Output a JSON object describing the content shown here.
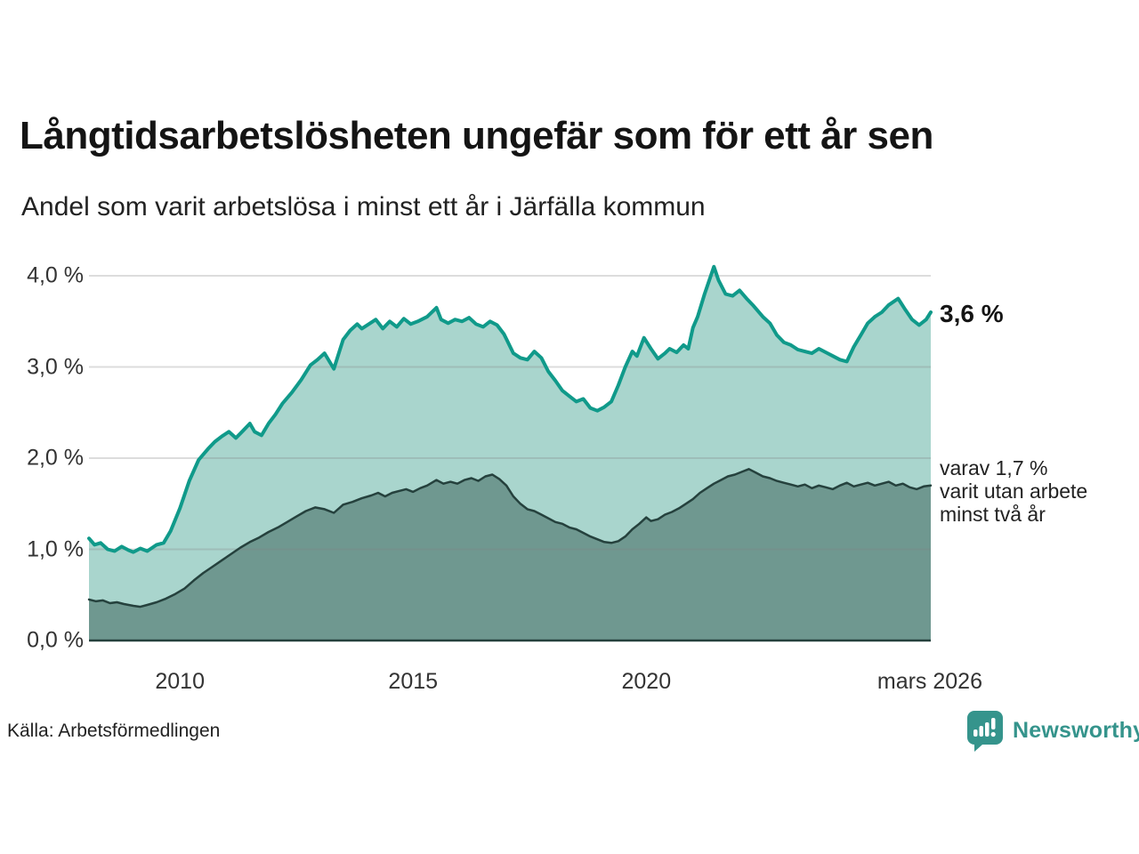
{
  "title": "Långtidsarbetslösheten ungefär som för ett år sen",
  "subtitle": "Andel som varit arbetslösa i minst ett år i Järfälla kommun",
  "source": "Källa: Arbetsförmedlingen",
  "brand": {
    "name": "Newsworthy",
    "color": "#35948c",
    "icon": "newsworthy-bubble-bars-icon"
  },
  "annotations": {
    "latest_total": "3,6 %",
    "latest_sub_lines": [
      "varav 1,7 %",
      "varit utan arbete",
      "minst två år"
    ]
  },
  "colors": {
    "accent_line": "#109a8a",
    "accent_fill": "#a9d5cd",
    "dark_line": "#25413d",
    "dark_fill": "#6f9890",
    "grid": "#d9d9d9",
    "text": "#222222"
  },
  "chart_data": {
    "type": "area",
    "title": "Långtidsarbetslösheten ungefär som för ett år sen",
    "subtitle": "Andel som varit arbetslösa i minst ett år i Järfälla kommun",
    "xlabel": "",
    "ylabel": "",
    "xlim": [
      2008.05,
      2026.1
    ],
    "ylim": [
      0,
      4.2
    ],
    "grid": true,
    "legend_position": "right-annotations",
    "y_ticks": [
      {
        "value": 0,
        "label": "0,0 %"
      },
      {
        "value": 1,
        "label": "1,0 %"
      },
      {
        "value": 2,
        "label": "2,0 %"
      },
      {
        "value": 3,
        "label": "3,0 %"
      },
      {
        "value": 4,
        "label": "4,0 %"
      }
    ],
    "x_ticks": [
      {
        "x": 2010,
        "label": "2010"
      },
      {
        "x": 2015,
        "label": "2015"
      },
      {
        "x": 2020,
        "label": "2020"
      },
      {
        "x": 2026.08,
        "label": "mars 2026"
      }
    ],
    "series": [
      {
        "name": "arbetslösa i minst ett år",
        "latest_label": "3,6 %",
        "line_color": "#109a8a",
        "fill_color": "#a9d5cd",
        "line_width": 4,
        "points": [
          [
            2008.05,
            1.12
          ],
          [
            2008.17,
            1.05
          ],
          [
            2008.3,
            1.07
          ],
          [
            2008.45,
            1.0
          ],
          [
            2008.6,
            0.98
          ],
          [
            2008.75,
            1.03
          ],
          [
            2008.9,
            0.99
          ],
          [
            2009.0,
            0.97
          ],
          [
            2009.15,
            1.01
          ],
          [
            2009.3,
            0.98
          ],
          [
            2009.5,
            1.05
          ],
          [
            2009.65,
            1.07
          ],
          [
            2009.8,
            1.2
          ],
          [
            2010.0,
            1.45
          ],
          [
            2010.2,
            1.75
          ],
          [
            2010.4,
            1.98
          ],
          [
            2010.6,
            2.1
          ],
          [
            2010.75,
            2.18
          ],
          [
            2010.9,
            2.24
          ],
          [
            2011.05,
            2.29
          ],
          [
            2011.2,
            2.22
          ],
          [
            2011.35,
            2.3
          ],
          [
            2011.5,
            2.38
          ],
          [
            2011.6,
            2.29
          ],
          [
            2011.75,
            2.25
          ],
          [
            2011.9,
            2.38
          ],
          [
            2012.05,
            2.48
          ],
          [
            2012.2,
            2.6
          ],
          [
            2012.4,
            2.72
          ],
          [
            2012.6,
            2.86
          ],
          [
            2012.8,
            3.02
          ],
          [
            2012.95,
            3.08
          ],
          [
            2013.1,
            3.15
          ],
          [
            2013.3,
            2.98
          ],
          [
            2013.5,
            3.3
          ],
          [
            2013.65,
            3.4
          ],
          [
            2013.8,
            3.47
          ],
          [
            2013.9,
            3.42
          ],
          [
            2014.05,
            3.47
          ],
          [
            2014.2,
            3.52
          ],
          [
            2014.35,
            3.42
          ],
          [
            2014.5,
            3.5
          ],
          [
            2014.65,
            3.44
          ],
          [
            2014.8,
            3.53
          ],
          [
            2014.95,
            3.47
          ],
          [
            2015.1,
            3.5
          ],
          [
            2015.3,
            3.55
          ],
          [
            2015.5,
            3.65
          ],
          [
            2015.6,
            3.52
          ],
          [
            2015.75,
            3.48
          ],
          [
            2015.9,
            3.52
          ],
          [
            2016.05,
            3.5
          ],
          [
            2016.2,
            3.54
          ],
          [
            2016.35,
            3.47
          ],
          [
            2016.5,
            3.44
          ],
          [
            2016.65,
            3.5
          ],
          [
            2016.8,
            3.46
          ],
          [
            2016.95,
            3.36
          ],
          [
            2017.15,
            3.15
          ],
          [
            2017.3,
            3.1
          ],
          [
            2017.45,
            3.08
          ],
          [
            2017.6,
            3.17
          ],
          [
            2017.75,
            3.1
          ],
          [
            2017.9,
            2.95
          ],
          [
            2018.05,
            2.85
          ],
          [
            2018.2,
            2.74
          ],
          [
            2018.35,
            2.68
          ],
          [
            2018.5,
            2.62
          ],
          [
            2018.65,
            2.65
          ],
          [
            2018.8,
            2.55
          ],
          [
            2018.95,
            2.52
          ],
          [
            2019.1,
            2.56
          ],
          [
            2019.25,
            2.62
          ],
          [
            2019.4,
            2.8
          ],
          [
            2019.55,
            3.0
          ],
          [
            2019.7,
            3.17
          ],
          [
            2019.8,
            3.12
          ],
          [
            2019.95,
            3.32
          ],
          [
            2020.1,
            3.2
          ],
          [
            2020.25,
            3.09
          ],
          [
            2020.4,
            3.15
          ],
          [
            2020.5,
            3.2
          ],
          [
            2020.65,
            3.16
          ],
          [
            2020.8,
            3.24
          ],
          [
            2020.9,
            3.2
          ],
          [
            2021.0,
            3.43
          ],
          [
            2021.1,
            3.55
          ],
          [
            2021.25,
            3.8
          ],
          [
            2021.45,
            4.1
          ],
          [
            2021.55,
            3.95
          ],
          [
            2021.7,
            3.8
          ],
          [
            2021.85,
            3.78
          ],
          [
            2022.0,
            3.84
          ],
          [
            2022.15,
            3.75
          ],
          [
            2022.3,
            3.67
          ],
          [
            2022.5,
            3.55
          ],
          [
            2022.65,
            3.48
          ],
          [
            2022.8,
            3.35
          ],
          [
            2022.95,
            3.27
          ],
          [
            2023.1,
            3.24
          ],
          [
            2023.25,
            3.19
          ],
          [
            2023.4,
            3.17
          ],
          [
            2023.55,
            3.15
          ],
          [
            2023.7,
            3.2
          ],
          [
            2023.85,
            3.16
          ],
          [
            2024.0,
            3.12
          ],
          [
            2024.15,
            3.08
          ],
          [
            2024.3,
            3.06
          ],
          [
            2024.45,
            3.22
          ],
          [
            2024.6,
            3.35
          ],
          [
            2024.75,
            3.48
          ],
          [
            2024.9,
            3.55
          ],
          [
            2025.05,
            3.6
          ],
          [
            2025.2,
            3.68
          ],
          [
            2025.4,
            3.75
          ],
          [
            2025.55,
            3.63
          ],
          [
            2025.7,
            3.52
          ],
          [
            2025.85,
            3.46
          ],
          [
            2026.0,
            3.52
          ],
          [
            2026.1,
            3.6
          ]
        ]
      },
      {
        "name": "varit utan arbete minst två år",
        "latest_label": "varav 1,7 %",
        "line_color": "#25413d",
        "fill_color": "#6f9890",
        "line_width": 2.5,
        "points": [
          [
            2008.05,
            0.45
          ],
          [
            2008.2,
            0.43
          ],
          [
            2008.35,
            0.44
          ],
          [
            2008.5,
            0.41
          ],
          [
            2008.65,
            0.42
          ],
          [
            2008.8,
            0.4
          ],
          [
            2009.0,
            0.38
          ],
          [
            2009.15,
            0.37
          ],
          [
            2009.3,
            0.39
          ],
          [
            2009.5,
            0.42
          ],
          [
            2009.7,
            0.46
          ],
          [
            2009.9,
            0.51
          ],
          [
            2010.1,
            0.57
          ],
          [
            2010.3,
            0.66
          ],
          [
            2010.5,
            0.74
          ],
          [
            2010.7,
            0.81
          ],
          [
            2010.9,
            0.88
          ],
          [
            2011.1,
            0.95
          ],
          [
            2011.3,
            1.02
          ],
          [
            2011.5,
            1.08
          ],
          [
            2011.7,
            1.13
          ],
          [
            2011.9,
            1.19
          ],
          [
            2012.1,
            1.24
          ],
          [
            2012.3,
            1.3
          ],
          [
            2012.5,
            1.36
          ],
          [
            2012.7,
            1.42
          ],
          [
            2012.9,
            1.46
          ],
          [
            2013.1,
            1.44
          ],
          [
            2013.3,
            1.4
          ],
          [
            2013.5,
            1.49
          ],
          [
            2013.7,
            1.52
          ],
          [
            2013.9,
            1.56
          ],
          [
            2014.1,
            1.59
          ],
          [
            2014.25,
            1.62
          ],
          [
            2014.4,
            1.58
          ],
          [
            2014.55,
            1.62
          ],
          [
            2014.7,
            1.64
          ],
          [
            2014.85,
            1.66
          ],
          [
            2015.0,
            1.63
          ],
          [
            2015.15,
            1.67
          ],
          [
            2015.3,
            1.7
          ],
          [
            2015.5,
            1.76
          ],
          [
            2015.65,
            1.72
          ],
          [
            2015.8,
            1.74
          ],
          [
            2015.95,
            1.72
          ],
          [
            2016.1,
            1.76
          ],
          [
            2016.25,
            1.78
          ],
          [
            2016.4,
            1.75
          ],
          [
            2016.55,
            1.8
          ],
          [
            2016.7,
            1.82
          ],
          [
            2016.85,
            1.77
          ],
          [
            2017.0,
            1.7
          ],
          [
            2017.15,
            1.58
          ],
          [
            2017.3,
            1.5
          ],
          [
            2017.45,
            1.44
          ],
          [
            2017.6,
            1.42
          ],
          [
            2017.75,
            1.38
          ],
          [
            2017.9,
            1.34
          ],
          [
            2018.05,
            1.3
          ],
          [
            2018.2,
            1.28
          ],
          [
            2018.35,
            1.24
          ],
          [
            2018.5,
            1.22
          ],
          [
            2018.65,
            1.18
          ],
          [
            2018.8,
            1.14
          ],
          [
            2018.95,
            1.11
          ],
          [
            2019.1,
            1.08
          ],
          [
            2019.25,
            1.07
          ],
          [
            2019.4,
            1.09
          ],
          [
            2019.55,
            1.14
          ],
          [
            2019.7,
            1.22
          ],
          [
            2019.85,
            1.28
          ],
          [
            2020.0,
            1.35
          ],
          [
            2020.1,
            1.31
          ],
          [
            2020.25,
            1.33
          ],
          [
            2020.4,
            1.38
          ],
          [
            2020.55,
            1.41
          ],
          [
            2020.7,
            1.45
          ],
          [
            2020.85,
            1.5
          ],
          [
            2021.0,
            1.55
          ],
          [
            2021.15,
            1.62
          ],
          [
            2021.3,
            1.67
          ],
          [
            2021.45,
            1.72
          ],
          [
            2021.6,
            1.76
          ],
          [
            2021.75,
            1.8
          ],
          [
            2021.9,
            1.82
          ],
          [
            2022.05,
            1.85
          ],
          [
            2022.2,
            1.88
          ],
          [
            2022.35,
            1.84
          ],
          [
            2022.5,
            1.8
          ],
          [
            2022.65,
            1.78
          ],
          [
            2022.8,
            1.75
          ],
          [
            2022.95,
            1.73
          ],
          [
            2023.1,
            1.71
          ],
          [
            2023.25,
            1.69
          ],
          [
            2023.4,
            1.71
          ],
          [
            2023.55,
            1.67
          ],
          [
            2023.7,
            1.7
          ],
          [
            2023.85,
            1.68
          ],
          [
            2024.0,
            1.66
          ],
          [
            2024.15,
            1.7
          ],
          [
            2024.3,
            1.73
          ],
          [
            2024.45,
            1.69
          ],
          [
            2024.6,
            1.71
          ],
          [
            2024.75,
            1.73
          ],
          [
            2024.9,
            1.7
          ],
          [
            2025.05,
            1.72
          ],
          [
            2025.2,
            1.74
          ],
          [
            2025.35,
            1.7
          ],
          [
            2025.5,
            1.72
          ],
          [
            2025.65,
            1.68
          ],
          [
            2025.8,
            1.66
          ],
          [
            2025.95,
            1.69
          ],
          [
            2026.1,
            1.7
          ]
        ]
      }
    ]
  }
}
